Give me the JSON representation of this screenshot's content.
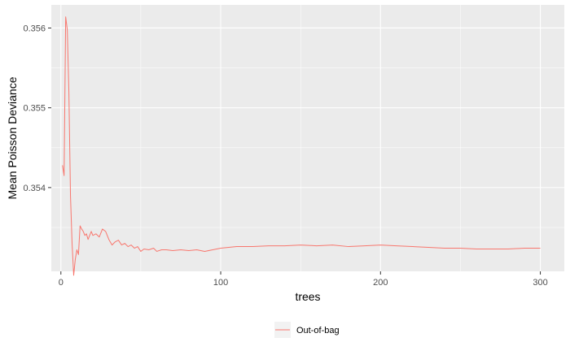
{
  "chart_data": {
    "type": "line",
    "title": "",
    "xlabel": "trees",
    "ylabel": "Mean Poisson Deviance",
    "xlim": [
      -6,
      315
    ],
    "ylim": [
      0.35295,
      0.35629
    ],
    "x_ticks": [
      0,
      100,
      200,
      300
    ],
    "x_tick_labels": [
      "0",
      "100",
      "200",
      "300"
    ],
    "y_ticks": [
      0.354,
      0.355,
      0.356
    ],
    "y_tick_labels": [
      "0.354",
      "0.355",
      "0.356"
    ],
    "grid": true,
    "legend_position": "bottom",
    "series": [
      {
        "name": "Out-of-bag",
        "color": "#F8766D",
        "x": [
          1,
          2,
          3,
          4,
          5,
          6,
          7,
          8,
          9,
          10,
          11,
          12,
          13,
          14,
          15,
          16,
          17,
          18,
          19,
          20,
          22,
          24,
          26,
          28,
          30,
          32,
          34,
          36,
          38,
          40,
          42,
          44,
          46,
          48,
          50,
          52,
          55,
          58,
          60,
          63,
          66,
          70,
          75,
          80,
          85,
          90,
          95,
          100,
          105,
          110,
          115,
          120,
          130,
          140,
          150,
          160,
          170,
          180,
          190,
          200,
          210,
          220,
          230,
          240,
          250,
          260,
          270,
          280,
          290,
          300
        ],
        "values": [
          0.35428,
          0.35415,
          0.35614,
          0.35598,
          0.3552,
          0.3539,
          0.3533,
          0.3529,
          0.3531,
          0.35322,
          0.35316,
          0.35352,
          0.35348,
          0.35345,
          0.3534,
          0.35342,
          0.35335,
          0.3534,
          0.35345,
          0.3534,
          0.35342,
          0.35338,
          0.35348,
          0.35345,
          0.35335,
          0.35328,
          0.35332,
          0.35334,
          0.35328,
          0.3533,
          0.35326,
          0.35328,
          0.35324,
          0.35326,
          0.3532,
          0.35323,
          0.35322,
          0.35324,
          0.3532,
          0.35322,
          0.35322,
          0.35321,
          0.35322,
          0.35321,
          0.35322,
          0.3532,
          0.35322,
          0.35324,
          0.35325,
          0.35326,
          0.35326,
          0.35326,
          0.35327,
          0.35327,
          0.35328,
          0.35327,
          0.35328,
          0.35326,
          0.35327,
          0.35328,
          0.35327,
          0.35326,
          0.35325,
          0.35324,
          0.35324,
          0.35323,
          0.35323,
          0.35323,
          0.35324,
          0.35324
        ]
      }
    ]
  }
}
